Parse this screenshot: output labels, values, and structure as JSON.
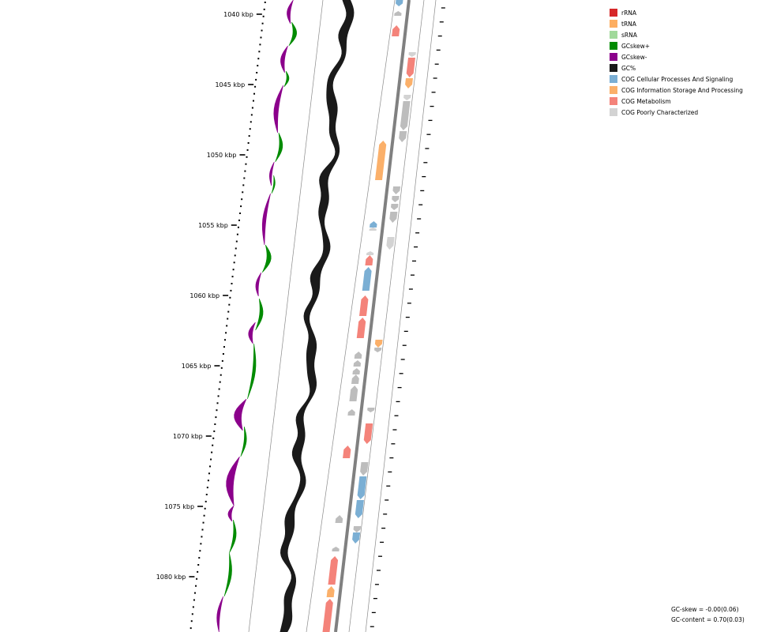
{
  "ticks": [
    {
      "label": "1040 kbp"
    },
    {
      "label": "1045 kbp"
    },
    {
      "label": "1050 kbp"
    },
    {
      "label": "1055 kbp"
    },
    {
      "label": "1060 kbp"
    },
    {
      "label": "1065 kbp"
    },
    {
      "label": "1070 kbp"
    },
    {
      "label": "1075 kbp"
    },
    {
      "label": "1080 kbp"
    }
  ],
  "legend": [
    {
      "label": "rRNA",
      "color": "#d62728"
    },
    {
      "label": "tRNA",
      "color": "#fdae61"
    },
    {
      "label": "sRNA",
      "color": "#a1d99b"
    },
    {
      "label": "GCskew+",
      "color": "#008b00"
    },
    {
      "label": "GCskew-",
      "color": "#8b008b"
    },
    {
      "label": "GC%",
      "color": "#1a1a1a"
    },
    {
      "label": "COG Cellular Processes And Signaling",
      "color": "#7bafd4"
    },
    {
      "label": "COG Information Storage And Processing",
      "color": "#fbb06a"
    },
    {
      "label": "COG Metabolism",
      "color": "#f4837a"
    },
    {
      "label": "COG Poorly Characterized",
      "color": "#d3d3d3"
    }
  ],
  "stats": {
    "gc_skew": "GC-skew = -0.00(0.06)",
    "gc_content": "GC-content = 0.70(0.03)"
  }
}
